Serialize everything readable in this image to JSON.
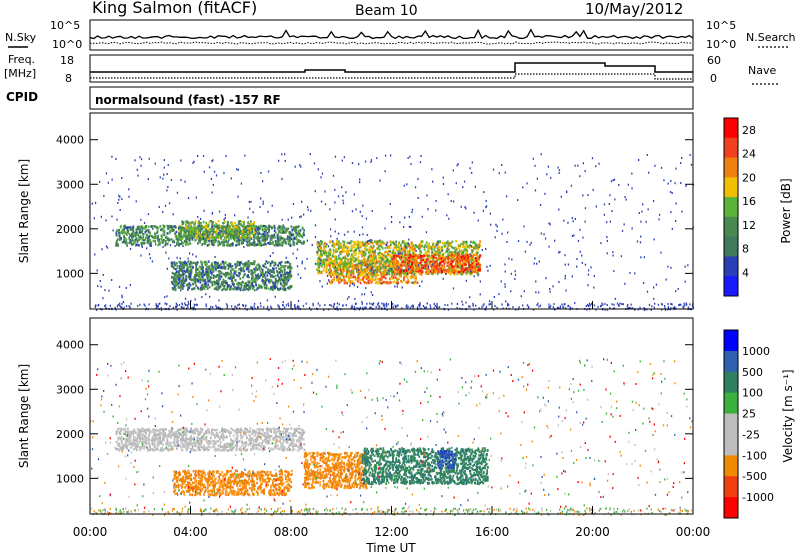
{
  "header": {
    "station": "King Salmon (fitACF)",
    "beam": "Beam 10",
    "date": "10/May/2012"
  },
  "top_panel": {
    "left_label": "N.Sky",
    "right_label": "N.Search",
    "left_ticks": [
      "10^5",
      "10^0"
    ],
    "right_ticks": [
      "10^5",
      "10^0"
    ]
  },
  "freq_panel": {
    "left_label_line1": "Freq.",
    "left_label_line2": "[MHz]",
    "right_label": "Nave",
    "left_ticks": [
      "18",
      "8"
    ],
    "right_ticks": [
      "60",
      "0"
    ]
  },
  "cpid": {
    "label": "CPID",
    "program": "normalsound (fast) -157 RF"
  },
  "colors": {
    "power_scale": [
      "#1a1aff",
      "#2a3fb5",
      "#3f7a5a",
      "#4a8a50",
      "#5ab33a",
      "#f0c000",
      "#f08010",
      "#f04020",
      "#ff0000"
    ],
    "velocity_scale": [
      "#ff0000",
      "#f04010",
      "#f08a00",
      "#bdbdbd",
      "#bdbdbd",
      "#3cb03c",
      "#2f8060",
      "#3060b0",
      "#0000ff"
    ]
  },
  "chart_data": [
    {
      "type": "heatmap",
      "name": "power",
      "ylabel": "Slant Range [km]",
      "yticks": [
        "4000",
        "3000",
        "2000",
        "1000"
      ],
      "ylim": [
        200,
        4600
      ],
      "colorbar_label": "Power [dB]",
      "colorbar_ticks": [
        "28",
        "24",
        "20",
        "16",
        "12",
        "8",
        "4"
      ],
      "colorbar_range": [
        0,
        30
      ],
      "scatter_regions": [
        {
          "t0": 1.0,
          "t1": 8.5,
          "r0": 1650,
          "r1": 2100,
          "level": 10
        },
        {
          "t0": 3.5,
          "t1": 6.5,
          "r0": 1800,
          "r1": 2200,
          "level": 14
        },
        {
          "t0": 3.2,
          "t1": 8.0,
          "r0": 650,
          "r1": 1300,
          "level": 9
        },
        {
          "t0": 9.5,
          "t1": 13.0,
          "r0": 800,
          "r1": 1300,
          "level": 22
        },
        {
          "t0": 9.0,
          "t1": 15.5,
          "r0": 1000,
          "r1": 1750,
          "level": 17
        },
        {
          "t0": 12.0,
          "t1": 15.5,
          "r0": 1050,
          "r1": 1450,
          "level": 25
        }
      ]
    },
    {
      "type": "heatmap",
      "name": "velocity",
      "ylabel": "Slant Range [km]",
      "yticks": [
        "4000",
        "3000",
        "2000",
        "1000"
      ],
      "ylim": [
        200,
        4600
      ],
      "colorbar_label": "Velocity [m s⁻¹]",
      "colorbar_ticks": [
        "1000",
        "500",
        "100",
        "25",
        "-25",
        "-100",
        "-500",
        "-1000"
      ],
      "xlabel": "Time UT",
      "xticks": [
        "00:00",
        "04:00",
        "08:00",
        "12:00",
        "16:00",
        "20:00",
        "00:00"
      ],
      "xlim": [
        0,
        24
      ],
      "scatter_regions": [
        {
          "t0": 1.0,
          "t1": 8.5,
          "r0": 1650,
          "r1": 2150,
          "level": "grey"
        },
        {
          "t0": 3.3,
          "t1": 8.0,
          "r0": 650,
          "r1": 1200,
          "level": "orange"
        },
        {
          "t0": 8.5,
          "t1": 11.0,
          "r0": 800,
          "r1": 1600,
          "level": "orange"
        },
        {
          "t0": 10.8,
          "t1": 15.8,
          "r0": 900,
          "r1": 1700,
          "level": "darkgreen"
        },
        {
          "t0": 13.8,
          "t1": 14.5,
          "r0": 1250,
          "r1": 1650,
          "level": "blue"
        }
      ]
    }
  ]
}
